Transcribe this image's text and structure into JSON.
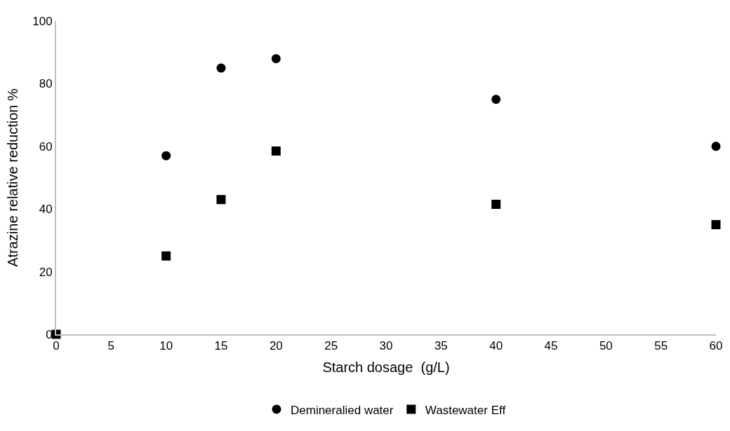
{
  "chart_data": {
    "type": "scatter",
    "xlabel": "Starch dosage  (g/L)",
    "ylabel": "Atrazine relative reduction %",
    "xlim": [
      0,
      60
    ],
    "xticks": [
      0,
      5,
      10,
      15,
      20,
      25,
      30,
      35,
      40,
      45,
      50,
      55,
      60
    ],
    "ylim": [
      0,
      100
    ],
    "yticks": [
      0,
      20,
      40,
      60,
      80,
      100
    ],
    "grid": false,
    "legend": "bottom",
    "series": [
      {
        "name": "Demineralied water",
        "color": "#000000",
        "marker": "circle",
        "x": [
          10,
          15,
          20,
          40,
          60
        ],
        "values": [
          57,
          85,
          88,
          75,
          60
        ]
      },
      {
        "name": "Wastewater Eff",
        "color": "#000000",
        "marker": "square",
        "x": [
          0,
          10,
          15,
          20,
          40,
          60
        ],
        "values": [
          0,
          25,
          43,
          58.5,
          41.5,
          35
        ]
      }
    ]
  }
}
